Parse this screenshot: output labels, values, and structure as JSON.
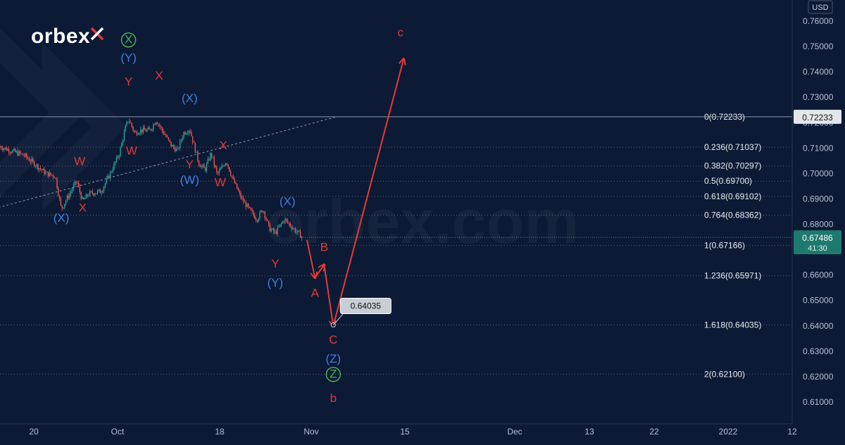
{
  "brand": {
    "logo_text": "orbex",
    "watermark": "orbex.com"
  },
  "colors": {
    "background": "#0c1a35",
    "candle_up": "#26a69a",
    "candle_down": "#ef5350",
    "wave_red": "#e53935",
    "wave_blue": "#3f7fe0",
    "wave_green": "#4caf50",
    "price_line": "#8a96a8",
    "fib_line": "#5a6678",
    "last_price_badge": "#1f7a6e"
  },
  "chart_data": {
    "type": "candlestick",
    "symbol_currency": "USD",
    "x_tick_labels": [
      "20",
      "Oct",
      "18",
      "Nov",
      "15",
      "Dec",
      "13",
      "22",
      "2022",
      "12"
    ],
    "y_tick_labels": [
      "0.76000",
      "0.75000",
      "0.74000",
      "0.73000",
      "0.72000",
      "0.71000",
      "0.70000",
      "0.69000",
      "0.68000",
      "0.67000",
      "0.66000",
      "0.65000",
      "0.64000",
      "0.63000",
      "0.62000",
      "0.61000"
    ],
    "ylim": [
      0.6055,
      0.7628
    ],
    "fibonacci_levels": [
      {
        "label": "0(0.72233)",
        "value": 0.72233
      },
      {
        "label": "0.236(0.71037)",
        "value": 0.71037
      },
      {
        "label": "0.382(0.70297)",
        "value": 0.70297
      },
      {
        "label": "0.5(0.69700)",
        "value": 0.697
      },
      {
        "label": "0.618(0.69102)",
        "value": 0.69102
      },
      {
        "label": "0.764(0.68362)",
        "value": 0.68362
      },
      {
        "label": "1(0.67166)",
        "value": 0.67166
      },
      {
        "label": "1.236(0.65971)",
        "value": 0.65971
      },
      {
        "label": "1.618(0.64035)",
        "value": 0.64035
      },
      {
        "label": "2(0.62100)",
        "value": 0.621
      }
    ],
    "horizontal_price_line": {
      "value": 0.72233,
      "label": "0.72233"
    },
    "last_price": {
      "value": 0.67486,
      "label": "0.67486",
      "countdown": "41:30"
    },
    "target_callout": {
      "value": 0.64035,
      "label": "0.64035"
    },
    "price_path": [
      [
        "Sep 14",
        0.711
      ],
      [
        "Sep 17",
        0.707
      ],
      [
        "Sep 21",
        0.703
      ],
      [
        "Sep 24",
        0.7
      ],
      [
        "Sep 27",
        0.699
      ],
      [
        "Sep 29",
        0.686
      ],
      [
        "Oct 1",
        0.6905
      ],
      [
        "Oct 4",
        0.697
      ],
      [
        "Oct 6",
        0.689
      ],
      [
        "Oct 8",
        0.692
      ],
      [
        "Oct 12",
        0.693
      ],
      [
        "Oct 15",
        0.7
      ],
      [
        "Oct 18",
        0.708
      ],
      [
        "Oct 20",
        0.718
      ],
      [
        "Oct 21",
        0.7215
      ],
      [
        "Oct 23",
        0.716
      ],
      [
        "Oct 25",
        0.717
      ],
      [
        "Oct 28",
        0.717
      ],
      [
        "Oct 30",
        0.721
      ],
      [
        "Nov 2",
        0.715
      ],
      [
        "Nov 4",
        0.711
      ],
      [
        "Nov 6",
        0.709
      ],
      [
        "Nov 8",
        0.716
      ],
      [
        "Nov 10",
        0.7175
      ],
      [
        "Nov 13",
        0.704
      ],
      [
        "Nov 15",
        0.7015
      ],
      [
        "Nov 17",
        0.708
      ],
      [
        "Nov 19",
        0.6995
      ],
      [
        "Nov 22",
        0.705
      ],
      [
        "Nov 24",
        0.698
      ],
      [
        "Nov 27",
        0.69
      ],
      [
        "Nov 30",
        0.685
      ],
      [
        "Dec 2",
        0.682
      ],
      [
        "Dec 4",
        0.686
      ],
      [
        "Dec 6",
        0.6785
      ],
      [
        "Dec 8",
        0.6765
      ],
      [
        "Dec 11",
        0.682
      ],
      [
        "Dec 13",
        0.6795
      ],
      [
        "Dec 15",
        0.677
      ],
      [
        "Dec 17",
        0.6749
      ]
    ],
    "projection_path": [
      [
        "Dec 18",
        0.673
      ],
      [
        "Dec 21",
        0.659
      ],
      [
        "Dec 24",
        0.664
      ],
      [
        "Dec 27",
        0.64
      ],
      [
        "Jan 19",
        0.745
      ]
    ],
    "dotted_trendline": [
      [
        "Sep 14",
        0.687
      ],
      [
        "Dec 28",
        0.7223
      ]
    ],
    "wave_labels": [
      {
        "text": "X",
        "color": "green",
        "circled": true,
        "date": "Oct 21",
        "value": 0.7512
      },
      {
        "text": "(Y)",
        "color": "blue",
        "date": "Oct 21",
        "value": 0.744
      },
      {
        "text": "Y",
        "color": "red",
        "date": "Oct 21",
        "value": 0.7346
      },
      {
        "text": "W",
        "color": "red",
        "date": "Oct 22",
        "value": 0.7075
      },
      {
        "text": "X",
        "color": "red",
        "date": "Oct 31",
        "value": 0.737
      },
      {
        "text": "(X)",
        "color": "blue",
        "date": "Nov 10",
        "value": 0.7281
      },
      {
        "text": "Y",
        "color": "red",
        "date": "Nov 10",
        "value": 0.702
      },
      {
        "text": "(W)",
        "color": "blue",
        "date": "Nov 10",
        "value": 0.696
      },
      {
        "text": "X",
        "color": "red",
        "date": "Nov 21",
        "value": 0.7096
      },
      {
        "text": "W",
        "color": "red",
        "date": "Nov 20",
        "value": 0.695
      },
      {
        "text": "W",
        "color": "red",
        "date": "Oct 5",
        "value": 0.7033
      },
      {
        "text": "X",
        "color": "red",
        "date": "Oct 6",
        "value": 0.685
      },
      {
        "text": "(X)",
        "color": "blue",
        "date": "Sep 29",
        "value": 0.681
      },
      {
        "text": "(X)",
        "color": "blue",
        "date": "Dec 12",
        "value": 0.6875
      },
      {
        "text": "Y",
        "color": "red",
        "date": "Dec 8",
        "value": 0.663
      },
      {
        "text": "(Y)",
        "color": "blue",
        "date": "Dec 8",
        "value": 0.6555
      },
      {
        "text": "A",
        "color": "red",
        "date": "Dec 21",
        "value": 0.6515
      },
      {
        "text": "B",
        "color": "red",
        "date": "Dec 24",
        "value": 0.6695
      },
      {
        "text": "C",
        "color": "red",
        "date": "Dec 27",
        "value": 0.633
      },
      {
        "text": "(Z)",
        "color": "blue",
        "date": "Dec 27",
        "value": 0.6255
      },
      {
        "text": "Z",
        "color": "green",
        "circled": true,
        "date": "Dec 27",
        "value": 0.6195
      },
      {
        "text": "b",
        "color": "red",
        "date": "Dec 27",
        "value": 0.61
      },
      {
        "text": "c",
        "color": "red",
        "date": "Jan 18",
        "value": 0.754
      }
    ]
  }
}
